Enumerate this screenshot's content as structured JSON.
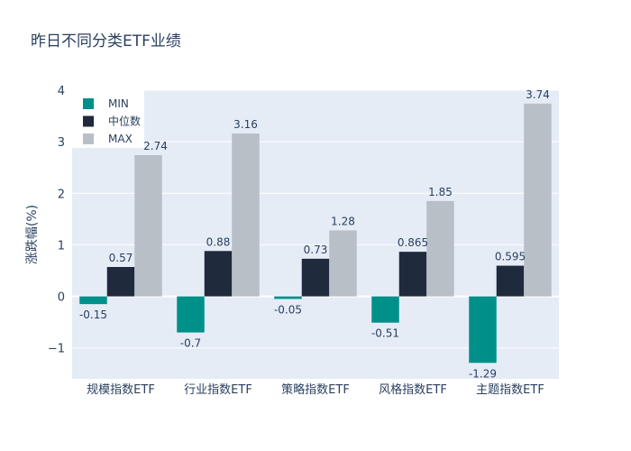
{
  "chart_data": {
    "type": "bar",
    "title": "昨日不同分类ETF业绩",
    "xlabel": "",
    "ylabel": "涨跌幅(%)",
    "ylim": [
      -1.6,
      4.0
    ],
    "yticks": [
      -1,
      0,
      1,
      2,
      3,
      4
    ],
    "ytick_labels": [
      "−1",
      "0",
      "1",
      "2",
      "3",
      "4"
    ],
    "grid": true,
    "legend_position": "top-left",
    "categories": [
      "规模指数ETF",
      "行业指数ETF",
      "策略指数ETF",
      "风格指数ETF",
      "主题指数ETF"
    ],
    "series": [
      {
        "name": "MIN",
        "color": "#00908a",
        "values": [
          -0.15,
          -0.7,
          -0.05,
          -0.51,
          -1.29
        ],
        "labels": [
          "-0.15",
          "-0.7",
          "-0.05",
          "-0.51",
          "-1.29"
        ]
      },
      {
        "name": "中位数",
        "color": "#1f2a3c",
        "values": [
          0.57,
          0.88,
          0.73,
          0.865,
          0.595
        ],
        "labels": [
          "0.57",
          "0.88",
          "0.73",
          "0.865",
          "0.595"
        ]
      },
      {
        "name": "MAX",
        "color": "#b8bfc7",
        "values": [
          2.74,
          3.16,
          1.28,
          1.85,
          3.74
        ],
        "labels": [
          "2.74",
          "3.16",
          "1.28",
          "1.85",
          "3.74"
        ]
      }
    ]
  },
  "colors": {
    "plot_background": "#e5ecf6",
    "grid": "#ffffff",
    "text": "#2a3f5f"
  }
}
